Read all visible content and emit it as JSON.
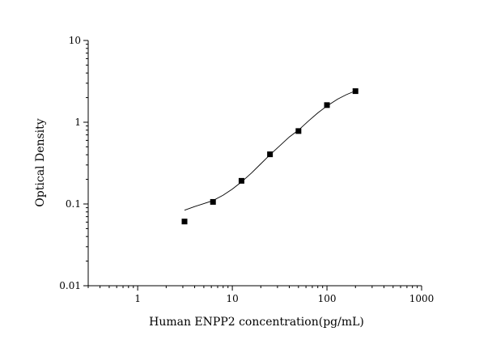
{
  "chart_data": {
    "type": "scatter",
    "xlabel": "Human ENPP2 concentration(pg/mL)",
    "ylabel": "Optical Density",
    "xscale": "log",
    "yscale": "log",
    "xlim": [
      0.3,
      1000
    ],
    "ylim": [
      0.01,
      10
    ],
    "xticks": [
      1,
      10,
      100,
      1000
    ],
    "xtick_labels": [
      "1",
      "10",
      "100",
      "1000"
    ],
    "yticks": [
      0.01,
      0.1,
      1,
      10
    ],
    "ytick_labels": [
      "0.01",
      "0.1",
      "1",
      "10"
    ],
    "grid": false,
    "marker": "square",
    "series": [
      {
        "x": [
          3.125,
          6.25,
          12.5,
          25,
          50,
          100,
          200
        ],
        "y": [
          0.061,
          0.106,
          0.192,
          0.405,
          0.78,
          1.62,
          2.4
        ]
      }
    ],
    "fit_curve": {
      "x": [
        3.125,
        4,
        5,
        6.25,
        8,
        10,
        12.5,
        16,
        20,
        25,
        32,
        40,
        50,
        64,
        80,
        100,
        130,
        160,
        200
      ],
      "y": [
        0.084,
        0.093,
        0.101,
        0.11,
        0.128,
        0.152,
        0.186,
        0.24,
        0.31,
        0.4,
        0.52,
        0.66,
        0.8,
        1.04,
        1.3,
        1.58,
        1.92,
        2.17,
        2.42
      ]
    }
  }
}
